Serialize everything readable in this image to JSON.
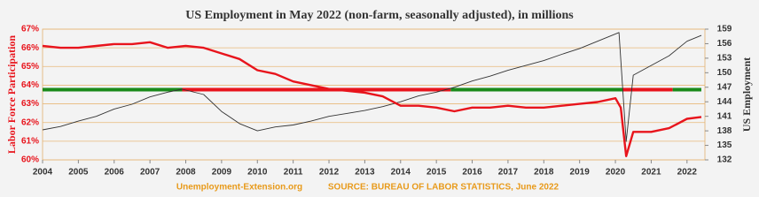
{
  "chart_data": {
    "type": "line",
    "title": "US Employment in May 2022 (non-farm, seasonally adjusted), in millions",
    "ylabel": "Labor Force Participation",
    "y2label": "US Employment",
    "footer_left": "Unemployment-Extension.org",
    "footer_right": "SOURCE: BUREAU OF LABOR STATISTICS, June 2022",
    "xlim": [
      2004,
      2022.5
    ],
    "xticks": [
      2004,
      2005,
      2006,
      2007,
      2008,
      2009,
      2010,
      2011,
      2012,
      2013,
      2014,
      2015,
      2016,
      2017,
      2018,
      2019,
      2020,
      2021,
      2022
    ],
    "ylim": [
      60,
      67
    ],
    "yticks": [
      {
        "value": 60,
        "label": "60%"
      },
      {
        "value": 61,
        "label": "61%"
      },
      {
        "value": 62,
        "label": "62%"
      },
      {
        "value": 63,
        "label": "63%"
      },
      {
        "value": 64,
        "label": "64%"
      },
      {
        "value": 65,
        "label": "65%"
      },
      {
        "value": 66,
        "label": "66%"
      },
      {
        "value": 67,
        "label": "67%"
      }
    ],
    "y2lim": [
      132,
      159
    ],
    "y2ticks": [
      132,
      135,
      138,
      141,
      144,
      147,
      150,
      153,
      156,
      159
    ],
    "grid": true,
    "series": [
      {
        "color": "#e8141c",
        "x": [
          2004,
          2004.5,
          2005,
          2005.5,
          2006,
          2006.5,
          2007,
          2007.5,
          2008,
          2008.5,
          2009,
          2009.5,
          2010,
          2010.5,
          2011,
          2011.5,
          2012,
          2012.5,
          2013,
          2013.5,
          2014,
          2014.5,
          2015,
          2015.5,
          2016,
          2016.5,
          2017,
          2017.5,
          2018,
          2018.5,
          2019,
          2019.5,
          2020,
          2020.15,
          2020.3,
          2020.5,
          2021,
          2021.5,
          2022,
          2022.4
        ],
        "values": [
          66.1,
          66.0,
          66.0,
          66.1,
          66.2,
          66.2,
          66.3,
          66.0,
          66.1,
          66.0,
          65.7,
          65.4,
          64.8,
          64.6,
          64.2,
          64.0,
          63.8,
          63.7,
          63.6,
          63.4,
          62.9,
          62.9,
          62.8,
          62.6,
          62.8,
          62.8,
          62.9,
          62.8,
          62.8,
          62.9,
          63.0,
          63.1,
          63.3,
          62.8,
          60.2,
          61.5,
          61.5,
          61.7,
          62.2,
          62.3
        ]
      },
      {
        "color": "#333333",
        "axis": "y2",
        "x": [
          2004,
          2004.5,
          2005,
          2005.5,
          2006,
          2006.5,
          2007,
          2007.5,
          2007.9,
          2008.5,
          2009,
          2009.5,
          2010,
          2010.5,
          2011,
          2011.5,
          2012,
          2012.5,
          2013,
          2013.5,
          2014,
          2014.5,
          2015,
          2015.5,
          2016,
          2016.5,
          2017,
          2017.5,
          2018,
          2018.5,
          2019,
          2019.5,
          2020.1,
          2020.3,
          2020.5,
          2021,
          2021.5,
          2022,
          2022.4
        ],
        "values": [
          138.2,
          138.9,
          140.0,
          141.0,
          142.5,
          143.5,
          145.0,
          146.0,
          146.6,
          145.5,
          142.0,
          139.5,
          138.0,
          138.8,
          139.2,
          140.0,
          141.0,
          141.6,
          142.2,
          143.0,
          144.0,
          145.2,
          146.0,
          147.0,
          148.3,
          149.3,
          150.5,
          151.5,
          152.5,
          153.8,
          155.0,
          156.5,
          158.3,
          135.8,
          149.5,
          151.5,
          153.5,
          156.5,
          157.7
        ]
      }
    ],
    "reference_line": {
      "value": 146.5,
      "axis": "y2",
      "segments": [
        {
          "color": "#1a8a1a",
          "x": [
            2004,
            2007.9
          ]
        },
        {
          "color": "#e8141c",
          "x": [
            2007.9,
            2015.4
          ]
        },
        {
          "color": "#1a8a1a",
          "x": [
            2015.4,
            2020.2
          ]
        },
        {
          "color": "#e8141c",
          "x": [
            2020.2,
            2021.6
          ]
        },
        {
          "color": "#1a8a1a",
          "x": [
            2021.6,
            2022.4
          ]
        }
      ]
    }
  }
}
